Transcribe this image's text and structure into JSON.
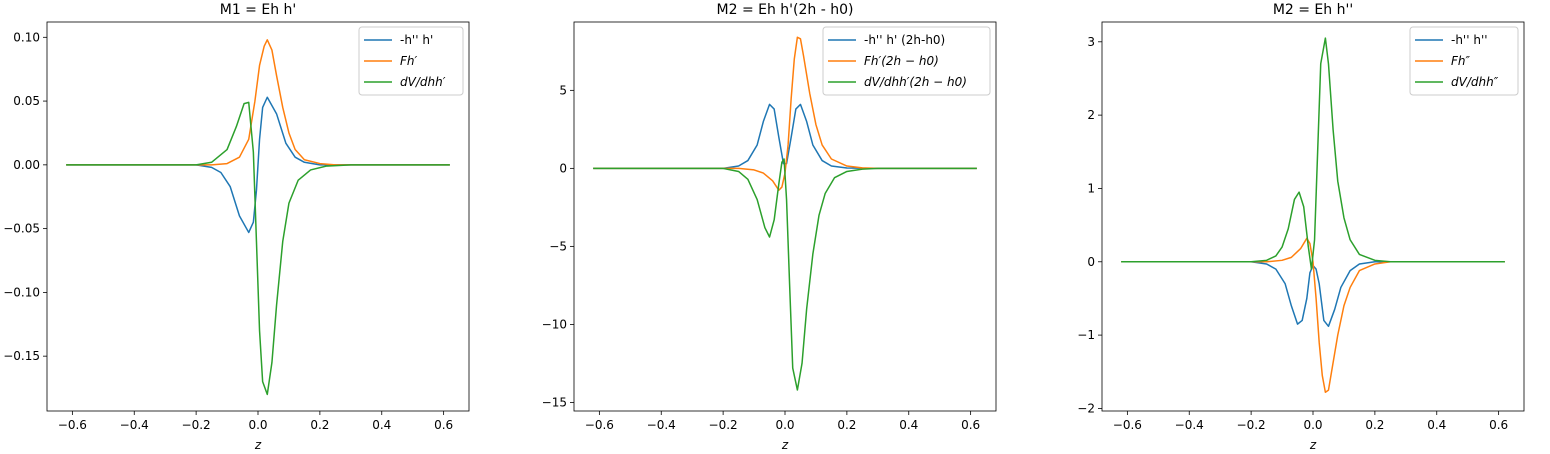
{
  "chart_data": [
    {
      "type": "line",
      "title": "M1 = Eh h'",
      "xlabel": "z",
      "ylabel": "",
      "xlim": [
        -0.682,
        0.682
      ],
      "ylim": [
        -0.193,
        0.112
      ],
      "xticks": [
        -0.6,
        -0.4,
        -0.2,
        0.0,
        0.2,
        0.4,
        0.6
      ],
      "xtick_labels": [
        "−0.6",
        "−0.4",
        "−0.2",
        "0.0",
        "0.2",
        "0.4",
        "0.6"
      ],
      "yticks": [
        -0.15,
        -0.1,
        -0.05,
        0.0,
        0.05,
        0.1
      ],
      "ytick_labels": [
        "−0.15",
        "−0.10",
        "−0.05",
        "0.00",
        "0.05",
        "0.10"
      ],
      "legend_position": "top-right",
      "series": [
        {
          "name": "-h'' h'",
          "color": "#1f77b4",
          "points": [
            [
              -0.62,
              0
            ],
            [
              -0.2,
              0
            ],
            [
              -0.15,
              -0.002
            ],
            [
              -0.12,
              -0.006
            ],
            [
              -0.09,
              -0.017
            ],
            [
              -0.06,
              -0.04
            ],
            [
              -0.03,
              -0.053
            ],
            [
              -0.015,
              -0.045
            ],
            [
              -0.005,
              -0.02
            ],
            [
              0.005,
              0.02
            ],
            [
              0.015,
              0.045
            ],
            [
              0.03,
              0.053
            ],
            [
              0.06,
              0.04
            ],
            [
              0.09,
              0.017
            ],
            [
              0.12,
              0.006
            ],
            [
              0.15,
              0.002
            ],
            [
              0.2,
              0
            ],
            [
              0.62,
              0
            ]
          ]
        },
        {
          "name": "Fh′",
          "color": "#ff7f0e",
          "points": [
            [
              -0.62,
              0
            ],
            [
              -0.15,
              0
            ],
            [
              -0.1,
              0.001
            ],
            [
              -0.06,
              0.006
            ],
            [
              -0.03,
              0.02
            ],
            [
              -0.01,
              0.05
            ],
            [
              0.005,
              0.078
            ],
            [
              0.02,
              0.093
            ],
            [
              0.03,
              0.098
            ],
            [
              0.045,
              0.09
            ],
            [
              0.06,
              0.07
            ],
            [
              0.08,
              0.045
            ],
            [
              0.1,
              0.025
            ],
            [
              0.12,
              0.012
            ],
            [
              0.15,
              0.004
            ],
            [
              0.2,
              0.001
            ],
            [
              0.25,
              0
            ],
            [
              0.62,
              0
            ]
          ]
        },
        {
          "name": "dV/dhh′",
          "color": "#2ca02c",
          "points": [
            [
              -0.62,
              0
            ],
            [
              -0.2,
              0
            ],
            [
              -0.15,
              0.002
            ],
            [
              -0.1,
              0.012
            ],
            [
              -0.07,
              0.03
            ],
            [
              -0.045,
              0.048
            ],
            [
              -0.03,
              0.049
            ],
            [
              -0.015,
              0.01
            ],
            [
              -0.005,
              -0.06
            ],
            [
              0.005,
              -0.13
            ],
            [
              0.015,
              -0.17
            ],
            [
              0.03,
              -0.18
            ],
            [
              0.045,
              -0.155
            ],
            [
              0.06,
              -0.11
            ],
            [
              0.08,
              -0.06
            ],
            [
              0.1,
              -0.03
            ],
            [
              0.13,
              -0.012
            ],
            [
              0.17,
              -0.004
            ],
            [
              0.22,
              -0.001
            ],
            [
              0.3,
              0
            ],
            [
              0.62,
              0
            ]
          ]
        }
      ]
    },
    {
      "type": "line",
      "title": "M2 = Eh h'(2h - h0)",
      "xlabel": "z",
      "ylabel": "",
      "xlim": [
        -0.682,
        0.682
      ],
      "ylim": [
        -15.55,
        9.38
      ],
      "xticks": [
        -0.6,
        -0.4,
        -0.2,
        0.0,
        0.2,
        0.4,
        0.6
      ],
      "xtick_labels": [
        "−0.6",
        "−0.4",
        "−0.2",
        "0.0",
        "0.2",
        "0.4",
        "0.6"
      ],
      "yticks": [
        -15,
        -10,
        -5,
        0,
        5
      ],
      "ytick_labels": [
        "−15",
        "−10",
        "−5",
        "0",
        "5"
      ],
      "legend_position": "top-right",
      "series": [
        {
          "name": "-h'' h' (2h-h0)",
          "color": "#1f77b4",
          "points": [
            [
              -0.62,
              0
            ],
            [
              -0.2,
              0
            ],
            [
              -0.15,
              0.15
            ],
            [
              -0.12,
              0.5
            ],
            [
              -0.09,
              1.5
            ],
            [
              -0.07,
              3.0
            ],
            [
              -0.05,
              4.1
            ],
            [
              -0.035,
              3.8
            ],
            [
              -0.02,
              2.0
            ],
            [
              -0.005,
              0.3
            ],
            [
              0.005,
              0.3
            ],
            [
              0.02,
              2.0
            ],
            [
              0.035,
              3.8
            ],
            [
              0.05,
              4.1
            ],
            [
              0.07,
              3.0
            ],
            [
              0.09,
              1.5
            ],
            [
              0.12,
              0.5
            ],
            [
              0.15,
              0.15
            ],
            [
              0.2,
              0.02
            ],
            [
              0.3,
              0
            ],
            [
              0.62,
              0
            ]
          ]
        },
        {
          "name": "Fh′(2h − h0)",
          "color": "#ff7f0e",
          "points": [
            [
              -0.62,
              0
            ],
            [
              -0.15,
              0
            ],
            [
              -0.1,
              -0.1
            ],
            [
              -0.07,
              -0.3
            ],
            [
              -0.04,
              -0.8
            ],
            [
              -0.02,
              -1.4
            ],
            [
              -0.01,
              -1.2
            ],
            [
              0.0,
              -0.3
            ],
            [
              0.01,
              1.5
            ],
            [
              0.02,
              4.5
            ],
            [
              0.03,
              7.0
            ],
            [
              0.04,
              8.4
            ],
            [
              0.05,
              8.3
            ],
            [
              0.06,
              7.2
            ],
            [
              0.08,
              4.8
            ],
            [
              0.1,
              2.8
            ],
            [
              0.12,
              1.5
            ],
            [
              0.15,
              0.6
            ],
            [
              0.2,
              0.15
            ],
            [
              0.25,
              0.03
            ],
            [
              0.3,
              0
            ],
            [
              0.62,
              0
            ]
          ]
        },
        {
          "name": "dV/dhh′(2h − h0)",
          "color": "#2ca02c",
          "points": [
            [
              -0.62,
              0
            ],
            [
              -0.2,
              0
            ],
            [
              -0.15,
              -0.2
            ],
            [
              -0.12,
              -0.7
            ],
            [
              -0.09,
              -2.0
            ],
            [
              -0.065,
              -3.8
            ],
            [
              -0.05,
              -4.4
            ],
            [
              -0.035,
              -3.3
            ],
            [
              -0.02,
              -1.0
            ],
            [
              -0.01,
              0.4
            ],
            [
              -0.003,
              0.6
            ],
            [
              0.005,
              -2.0
            ],
            [
              0.015,
              -7.5
            ],
            [
              0.025,
              -12.8
            ],
            [
              0.04,
              -14.2
            ],
            [
              0.055,
              -12.5
            ],
            [
              0.07,
              -9.0
            ],
            [
              0.09,
              -5.5
            ],
            [
              0.11,
              -3.0
            ],
            [
              0.13,
              -1.6
            ],
            [
              0.16,
              -0.6
            ],
            [
              0.2,
              -0.2
            ],
            [
              0.25,
              -0.05
            ],
            [
              0.3,
              0
            ],
            [
              0.62,
              0
            ]
          ]
        }
      ]
    },
    {
      "type": "line",
      "title": "M2 = Eh h''",
      "xlabel": "z",
      "ylabel": "",
      "xlim": [
        -0.682,
        0.682
      ],
      "ylim": [
        -2.035,
        3.27
      ],
      "xticks": [
        -0.6,
        -0.4,
        -0.2,
        0.0,
        0.2,
        0.4,
        0.6
      ],
      "xtick_labels": [
        "−0.6",
        "−0.4",
        "−0.2",
        "0.0",
        "0.2",
        "0.4",
        "0.6"
      ],
      "yticks": [
        -2,
        -1,
        0,
        1,
        2,
        3
      ],
      "ytick_labels": [
        "−2",
        "−1",
        "0",
        "1",
        "2",
        "3"
      ],
      "legend_position": "top-right",
      "series": [
        {
          "name": "-h'' h''",
          "color": "#1f77b4",
          "points": [
            [
              -0.62,
              0
            ],
            [
              -0.2,
              0
            ],
            [
              -0.15,
              -0.03
            ],
            [
              -0.12,
              -0.1
            ],
            [
              -0.09,
              -0.3
            ],
            [
              -0.07,
              -0.6
            ],
            [
              -0.05,
              -0.85
            ],
            [
              -0.035,
              -0.8
            ],
            [
              -0.02,
              -0.5
            ],
            [
              -0.01,
              -0.15
            ],
            [
              0.0,
              -0.05
            ],
            [
              0.01,
              -0.1
            ],
            [
              0.02,
              -0.3
            ],
            [
              0.035,
              -0.8
            ],
            [
              0.05,
              -0.88
            ],
            [
              0.07,
              -0.65
            ],
            [
              0.09,
              -0.35
            ],
            [
              0.12,
              -0.12
            ],
            [
              0.15,
              -0.03
            ],
            [
              0.2,
              0
            ],
            [
              0.62,
              0
            ]
          ]
        },
        {
          "name": "Fh″",
          "color": "#ff7f0e",
          "points": [
            [
              -0.62,
              0
            ],
            [
              -0.15,
              0
            ],
            [
              -0.1,
              0.02
            ],
            [
              -0.07,
              0.06
            ],
            [
              -0.04,
              0.18
            ],
            [
              -0.02,
              0.32
            ],
            [
              -0.01,
              0.25
            ],
            [
              0.0,
              0.0
            ],
            [
              0.01,
              -0.5
            ],
            [
              0.02,
              -1.1
            ],
            [
              0.03,
              -1.55
            ],
            [
              0.04,
              -1.78
            ],
            [
              0.05,
              -1.75
            ],
            [
              0.06,
              -1.5
            ],
            [
              0.08,
              -1.0
            ],
            [
              0.1,
              -0.6
            ],
            [
              0.12,
              -0.35
            ],
            [
              0.15,
              -0.12
            ],
            [
              0.2,
              -0.03
            ],
            [
              0.25,
              0
            ],
            [
              0.62,
              0
            ]
          ]
        },
        {
          "name": "dV/dhh″",
          "color": "#2ca02c",
          "points": [
            [
              -0.62,
              0
            ],
            [
              -0.2,
              0
            ],
            [
              -0.15,
              0.02
            ],
            [
              -0.12,
              0.08
            ],
            [
              -0.1,
              0.2
            ],
            [
              -0.08,
              0.45
            ],
            [
              -0.06,
              0.85
            ],
            [
              -0.045,
              0.95
            ],
            [
              -0.03,
              0.75
            ],
            [
              -0.015,
              0.2
            ],
            [
              -0.005,
              -0.1
            ],
            [
              0.005,
              0.3
            ],
            [
              0.015,
              1.5
            ],
            [
              0.025,
              2.7
            ],
            [
              0.04,
              3.05
            ],
            [
              0.05,
              2.7
            ],
            [
              0.065,
              1.8
            ],
            [
              0.08,
              1.1
            ],
            [
              0.1,
              0.6
            ],
            [
              0.12,
              0.3
            ],
            [
              0.15,
              0.1
            ],
            [
              0.2,
              0.02
            ],
            [
              0.25,
              0
            ],
            [
              0.62,
              0
            ]
          ]
        }
      ]
    }
  ]
}
